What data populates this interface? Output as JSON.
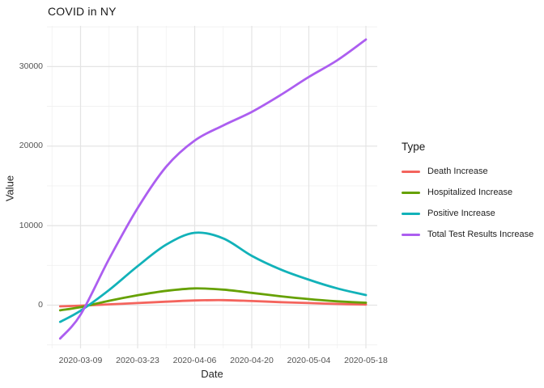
{
  "title": "COVID in NY",
  "legend": {
    "title": "Type"
  },
  "chart_data": {
    "type": "line",
    "title": "COVID in NY",
    "xlabel": "Date",
    "ylabel": "Value",
    "grid": true,
    "legend_position": "right",
    "background": "#ffffff",
    "major_grid_color": "#e4e4e4",
    "minor_grid_color": "#f0f0f0",
    "tick_color": "#d4d4d4",
    "x_major_ticks": [
      "2020-03-09",
      "2020-03-23",
      "2020-04-06",
      "2020-04-20",
      "2020-05-04",
      "2020-05-18"
    ],
    "x_minor_ticks": [
      "2020-03-02",
      "2020-03-16",
      "2020-03-30",
      "2020-04-13",
      "2020-04-27",
      "2020-05-11"
    ],
    "y_major_ticks": [
      0,
      10000,
      20000,
      30000
    ],
    "y_minor_ticks": [
      -5000,
      5000,
      15000,
      25000,
      35000
    ],
    "xlim": [
      "2020-02-29",
      "2020-05-21"
    ],
    "ylim": [
      -6100,
      35300
    ],
    "x": [
      "2020-03-04",
      "2020-03-09",
      "2020-03-16",
      "2020-03-23",
      "2020-03-30",
      "2020-04-06",
      "2020-04-13",
      "2020-04-20",
      "2020-04-27",
      "2020-05-04",
      "2020-05-11",
      "2020-05-18"
    ],
    "series": [
      {
        "name": "Death Increase",
        "color": "#F4645D",
        "values": [
          -150,
          -60,
          100,
          260,
          440,
          590,
          630,
          520,
          380,
          260,
          150,
          80
        ]
      },
      {
        "name": "Hospitalized Increase",
        "color": "#66A103",
        "values": [
          -650,
          -250,
          550,
          1250,
          1800,
          2100,
          1950,
          1550,
          1120,
          760,
          480,
          300
        ]
      },
      {
        "name": "Positive Increase",
        "color": "#12B2B9",
        "values": [
          -2100,
          -700,
          1900,
          4900,
          7600,
          9100,
          8400,
          6200,
          4500,
          3200,
          2100,
          1270
        ]
      },
      {
        "name": "Total Test Results Increase",
        "color": "#AC5EF0",
        "values": [
          -4200,
          -1200,
          5800,
          12200,
          17400,
          20700,
          22600,
          24300,
          26400,
          28700,
          30800,
          33400
        ]
      }
    ]
  }
}
